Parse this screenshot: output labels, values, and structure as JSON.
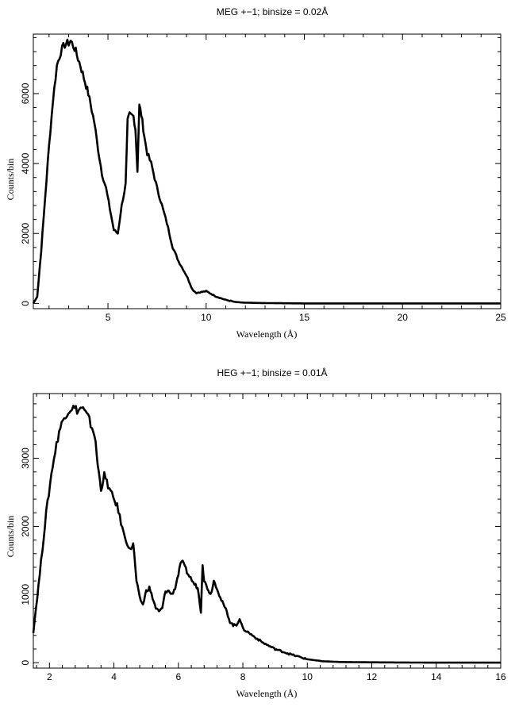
{
  "chart_data": [
    {
      "type": "line",
      "title": "MEG +−1; binsize = 0.02Å",
      "xlabel": "Wavelength (Å)",
      "ylabel": "Counts/bin",
      "xlim": [
        1.2,
        25
      ],
      "ylim": [
        -150,
        7700
      ],
      "xticks": [
        5,
        10,
        15,
        20,
        25
      ],
      "yticks": [
        0,
        2000,
        4000,
        6000
      ],
      "xtick_labels": [
        "5",
        "10",
        "15",
        "20",
        "25"
      ],
      "ytick_labels": [
        "0",
        "2000",
        "4000",
        "6000"
      ],
      "grid": false,
      "series": [
        {
          "x": [
            1.2,
            1.4,
            1.6,
            1.8,
            2.0,
            2.2,
            2.4,
            2.6,
            2.8,
            3.0,
            3.1,
            3.3,
            3.6,
            4.0,
            4.3,
            4.5,
            4.7,
            4.9,
            5.1,
            5.3,
            5.5,
            5.7,
            5.9,
            6.0,
            6.1,
            6.3,
            6.4,
            6.5,
            6.6,
            6.7,
            6.8,
            6.9,
            7.0,
            7.2,
            7.5,
            7.8,
            8.0,
            8.3,
            8.6,
            9.0,
            9.3,
            9.5,
            10.0,
            10.5,
            11.0,
            11.5,
            12.0,
            13.0,
            15.0,
            18.0,
            21.0,
            25.0
          ],
          "y": [
            0,
            200,
            1500,
            3000,
            4500,
            5800,
            6800,
            7200,
            7400,
            7450,
            7500,
            7300,
            6800,
            6000,
            5200,
            4400,
            3700,
            3300,
            2700,
            2100,
            2000,
            2800,
            3400,
            5200,
            5400,
            5350,
            5000,
            3800,
            5650,
            5400,
            5000,
            4600,
            4300,
            4000,
            3300,
            2700,
            2300,
            1600,
            1200,
            800,
            400,
            300,
            350,
            200,
            100,
            40,
            20,
            10,
            0,
            0,
            0,
            0
          ]
        }
      ]
    },
    {
      "type": "line",
      "title": "HEG +−1; binsize = 0.01Å",
      "xlabel": "Wavelength (Å)",
      "ylabel": "Counts/bin",
      "xlim": [
        1.5,
        16
      ],
      "ylim": [
        -80,
        3950
      ],
      "xticks": [
        2,
        4,
        6,
        8,
        10,
        12,
        14,
        16
      ],
      "yticks": [
        0,
        1000,
        2000,
        3000
      ],
      "xtick_labels": [
        "2",
        "4",
        "6",
        "8",
        "10",
        "12",
        "14",
        "16"
      ],
      "ytick_labels": [
        "0",
        "1000",
        "2000",
        "3000"
      ],
      "grid": false,
      "series": [
        {
          "x": [
            1.5,
            1.7,
            1.9,
            2.1,
            2.3,
            2.5,
            2.7,
            2.9,
            3.0,
            3.2,
            3.4,
            3.5,
            3.6,
            3.7,
            3.9,
            4.1,
            4.3,
            4.5,
            4.6,
            4.7,
            4.8,
            4.9,
            5.0,
            5.1,
            5.2,
            5.3,
            5.4,
            5.5,
            5.6,
            5.7,
            5.8,
            5.9,
            6.0,
            6.1,
            6.2,
            6.3,
            6.5,
            6.6,
            6.7,
            6.75,
            6.8,
            6.9,
            7.0,
            7.1,
            7.2,
            7.3,
            7.4,
            7.5,
            7.6,
            7.7,
            7.8,
            7.9,
            8.0,
            8.3,
            8.6,
            9.0,
            9.5,
            10.0,
            10.5,
            11.0,
            12.0,
            14.0,
            16.0
          ],
          "y": [
            450,
            1300,
            2200,
            2900,
            3400,
            3650,
            3750,
            3700,
            3750,
            3600,
            3350,
            2900,
            2550,
            2750,
            2500,
            2300,
            1900,
            1650,
            1750,
            1200,
            950,
            850,
            1050,
            1100,
            950,
            800,
            750,
            800,
            1050,
            1050,
            1000,
            1100,
            1300,
            1500,
            1400,
            1300,
            1150,
            1100,
            750,
            1450,
            1200,
            1100,
            1000,
            1200,
            1100,
            950,
            850,
            750,
            600,
            550,
            550,
            650,
            500,
            400,
            300,
            200,
            120,
            50,
            20,
            10,
            5,
            0,
            0
          ]
        }
      ]
    }
  ]
}
